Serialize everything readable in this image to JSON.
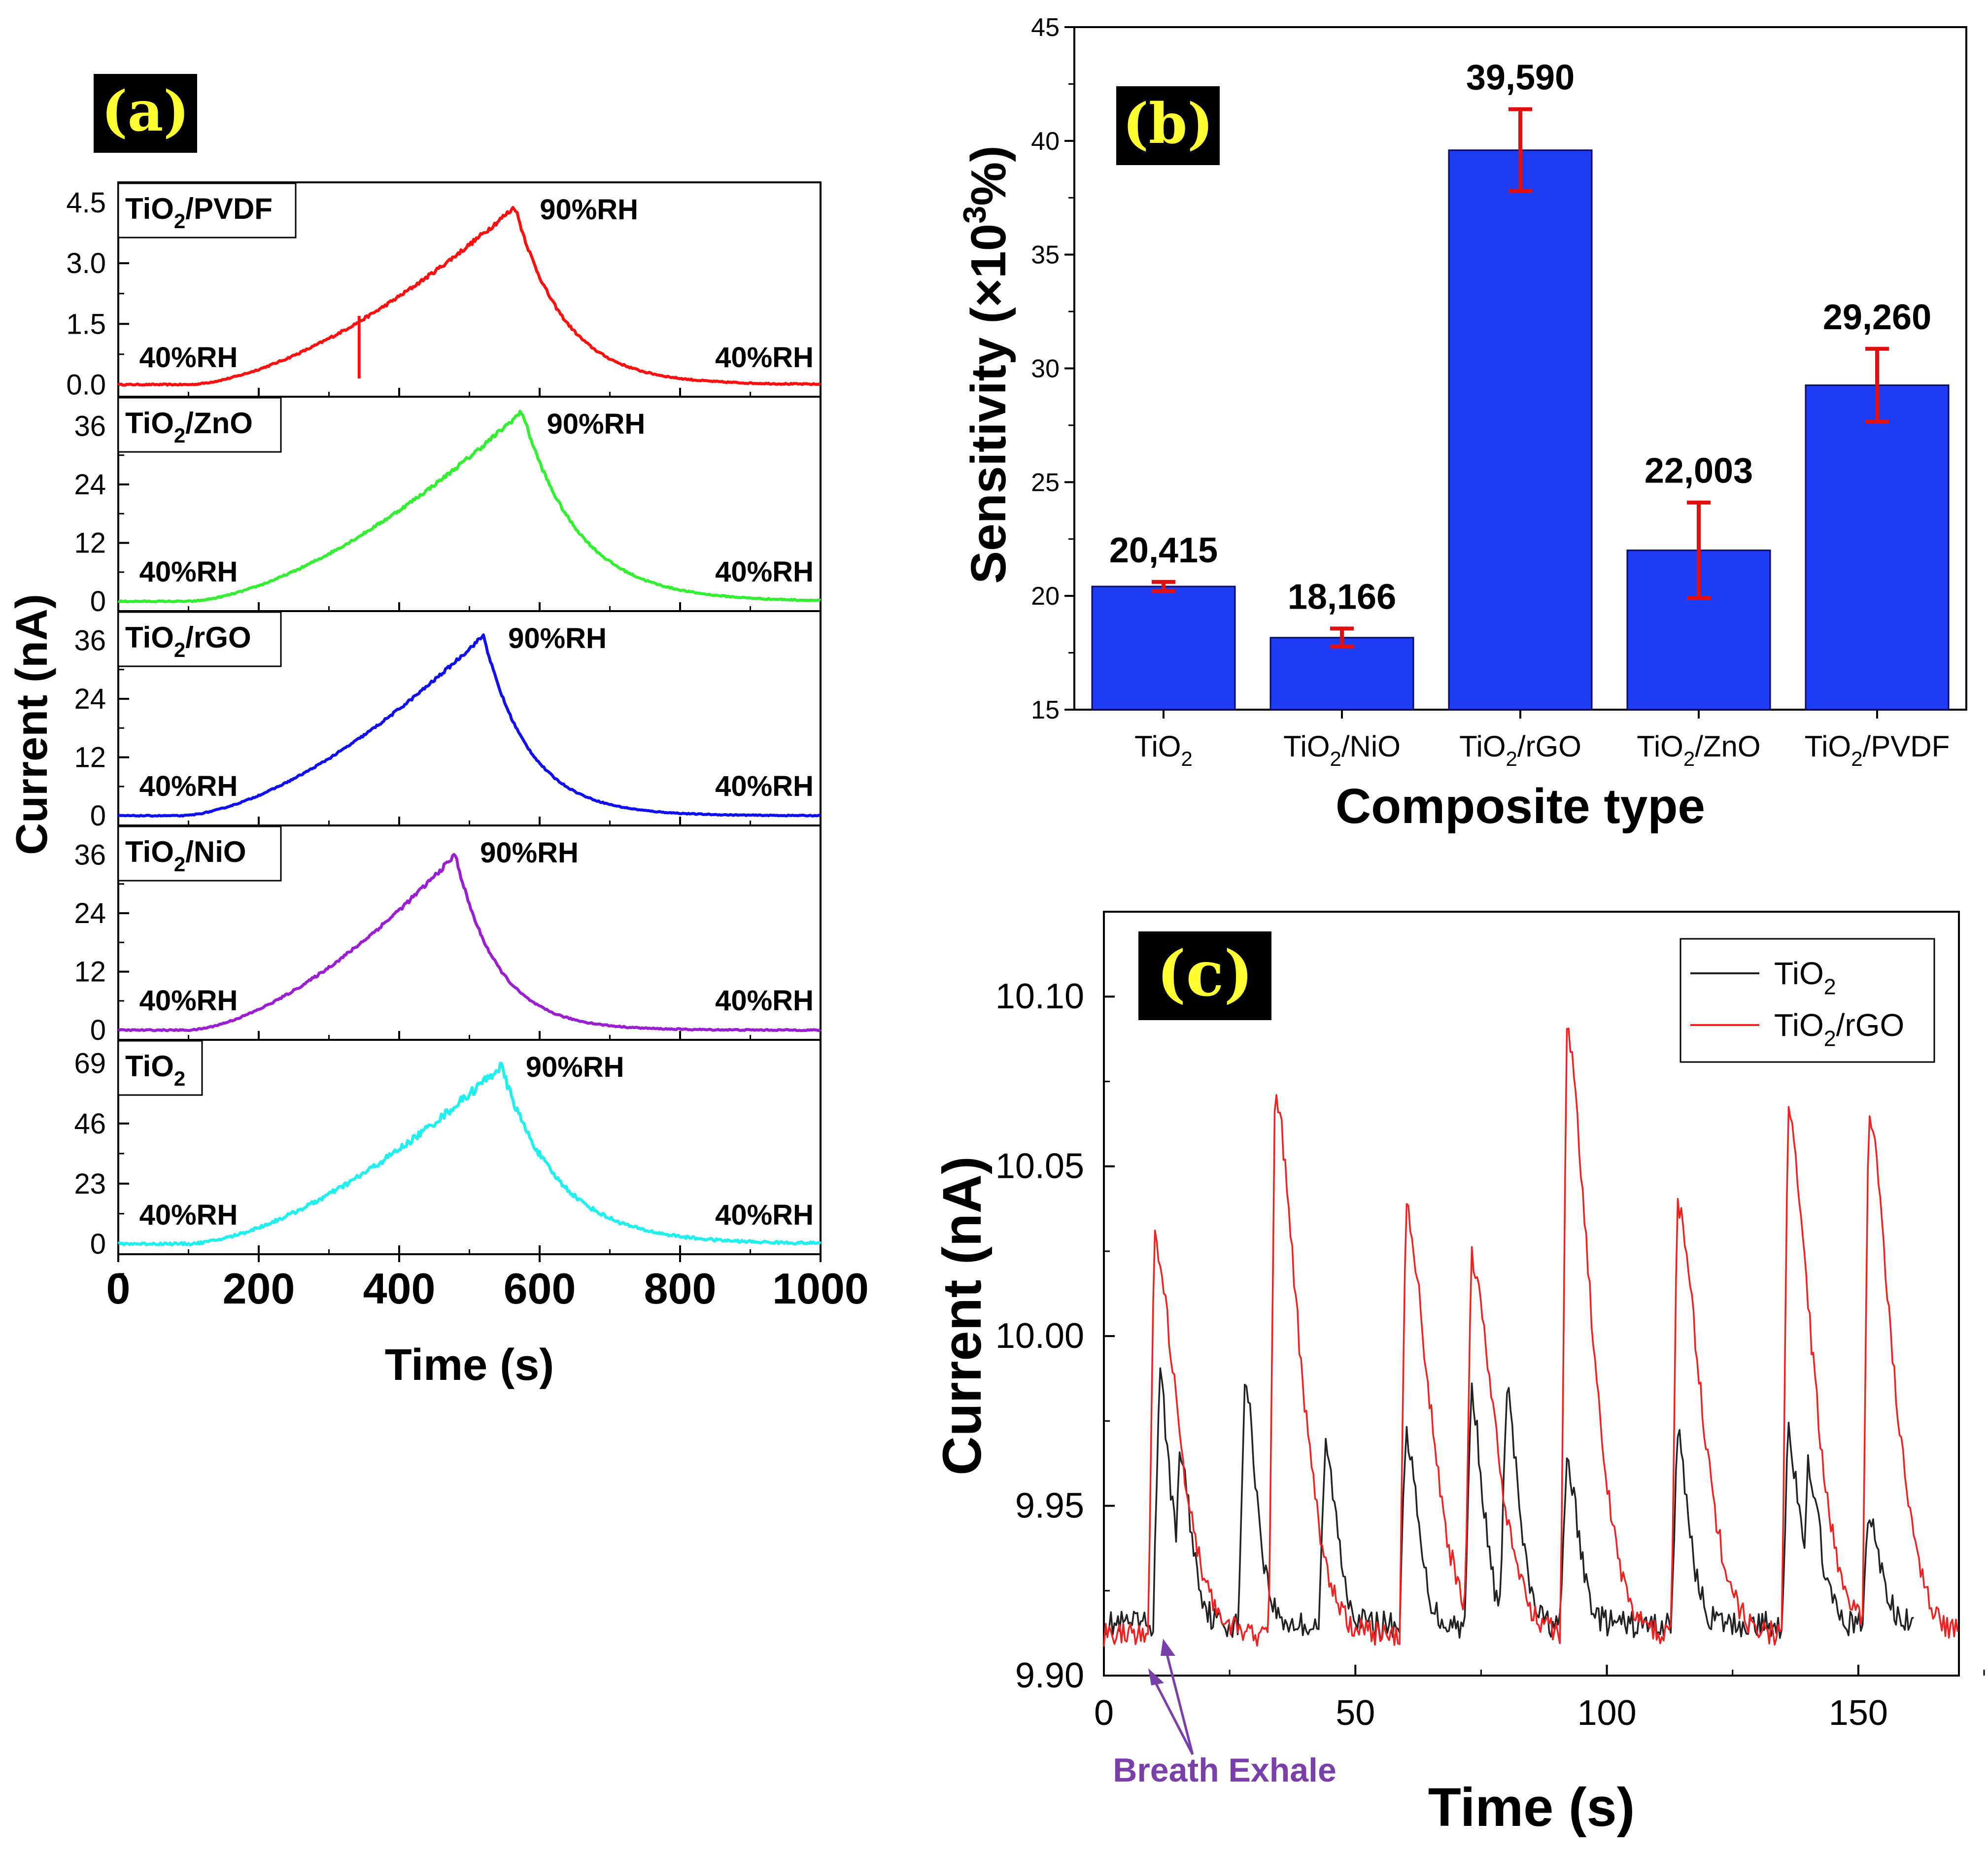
{
  "colors": {
    "bar": "#1f3cf5",
    "bar_edge": "#0a0a60",
    "error": "#e01010",
    "panel_label_bg": "#000000",
    "panel_label_fg": "#ffff33",
    "annotation": "#7a3fa8",
    "tio2_c": "#222222",
    "rgo_c": "#ee2222"
  },
  "chart_data": [
    {
      "id": "a",
      "type": "line",
      "panel_label": "(a)",
      "xlabel": "Time (s)",
      "ylabel": "Current (nA)",
      "xlim": [
        0,
        1000
      ],
      "xticks": [
        "0",
        "200",
        "400",
        "600",
        "800",
        "1000"
      ],
      "rh_low": "40%RH",
      "rh_high": "90%RH",
      "series": [
        {
          "name": "TiO2/PVDF",
          "base": "TiO",
          "sub": "2",
          "suffix": "/PVDF",
          "color": "#ff1010",
          "peak_x": 565,
          "peak_y": 4.4,
          "rise_start": 100,
          "tau": 70,
          "noise": 0.05,
          "ylim": [
            -0.3,
            5.0
          ],
          "yticks": [
            0,
            1.5,
            3.0,
            4.5
          ],
          "ytick_labels": [
            "0.0",
            "1.5",
            "3.0",
            "4.5"
          ]
        },
        {
          "name": "TiO2/ZnO",
          "base": "TiO",
          "sub": "2",
          "suffix": "/ZnO",
          "color": "#33ee33",
          "peak_x": 575,
          "peak_y": 39,
          "rise_start": 100,
          "tau": 80,
          "noise": 0.4,
          "ylim": [
            -2,
            42
          ],
          "yticks": [
            0,
            12,
            24,
            36
          ],
          "ytick_labels": [
            "0",
            "12",
            "24",
            "36"
          ]
        },
        {
          "name": "TiO2/rGO",
          "base": "TiO",
          "sub": "2",
          "suffix": "/rGO",
          "color": "#1010ee",
          "peak_x": 520,
          "peak_y": 37,
          "rise_start": 90,
          "tau": 65,
          "noise": 0.3,
          "ylim": [
            -2,
            42
          ],
          "yticks": [
            0,
            12,
            24,
            36
          ],
          "ytick_labels": [
            "0",
            "12",
            "24",
            "36"
          ]
        },
        {
          "name": "TiO2/NiO",
          "base": "TiO",
          "sub": "2",
          "suffix": "/NiO",
          "color": "#9a1fd0",
          "peak_x": 480,
          "peak_y": 36,
          "rise_start": 100,
          "tau": 60,
          "noise": 0.4,
          "ylim": [
            -2,
            42
          ],
          "yticks": [
            0,
            12,
            24,
            36
          ],
          "ytick_labels": [
            "0",
            "12",
            "24",
            "36"
          ]
        },
        {
          "name": "TiO2",
          "base": "TiO",
          "sub": "2",
          "suffix": "",
          "color": "#22eeee",
          "peak_x": 545,
          "peak_y": 68,
          "rise_start": 100,
          "tau": 80,
          "noise": 1.5,
          "ylim": [
            -4,
            78
          ],
          "yticks": [
            0,
            23,
            46,
            69
          ],
          "ytick_labels": [
            "0",
            "23",
            "46",
            "69"
          ]
        }
      ]
    },
    {
      "id": "b",
      "type": "bar",
      "panel_label": "(b)",
      "xlabel": "Composite type",
      "ylabel": "Sensitivity (×10³%)",
      "ylim": [
        15,
        45
      ],
      "yticks": [
        "15",
        "20",
        "25",
        "30",
        "35",
        "40",
        "45"
      ],
      "categories": [
        {
          "base": "TiO",
          "sub": "2",
          "suffix": ""
        },
        {
          "base": "TiO",
          "sub": "2",
          "suffix": "/NiO"
        },
        {
          "base": "TiO",
          "sub": "2",
          "suffix": "/rGO"
        },
        {
          "base": "TiO",
          "sub": "2",
          "suffix": "/ZnO"
        },
        {
          "base": "TiO",
          "sub": "2",
          "suffix": "/PVDF"
        }
      ],
      "values": [
        20.415,
        18.166,
        39.59,
        22.003,
        29.26
      ],
      "errors": [
        0.2,
        0.4,
        1.8,
        2.1,
        1.6
      ],
      "value_labels": [
        "20,415",
        "18,166",
        "39,590",
        "22,003",
        "29,260"
      ]
    },
    {
      "id": "c",
      "type": "line",
      "panel_label": "(c)",
      "xlabel": "Time (s)",
      "ylabel": "Current (nA)",
      "xlim": [
        0,
        170
      ],
      "ylim": [
        9.9,
        10.125
      ],
      "xticks": [
        "0",
        "50",
        "100",
        "150"
      ],
      "yticks": [
        "9.90",
        "9.95",
        "10.00",
        "10.05",
        "10.10"
      ],
      "annotation": "Breath Exhale",
      "series": [
        {
          "name": "TiO2",
          "base": "TiO",
          "sub": "2",
          "suffix": "",
          "color": "#222222",
          "baseline": 9.915,
          "end": 161,
          "noise": 0.004,
          "peaks": [
            [
              11,
              9.988
            ],
            [
              15,
              9.967
            ],
            [
              28,
              9.988
            ],
            [
              44,
              9.968
            ],
            [
              60,
              9.973
            ],
            [
              73,
              9.985
            ],
            [
              80,
              9.986
            ],
            [
              92,
              9.964
            ],
            [
              114,
              9.971
            ],
            [
              136,
              9.972
            ],
            [
              140,
              9.963
            ],
            [
              152,
              9.948
            ]
          ]
        },
        {
          "name": "TiO2/rGO",
          "base": "TiO",
          "sub": "2",
          "suffix": "/rGO",
          "color": "#ee2222",
          "baseline": 9.912,
          "end": 170,
          "noise": 0.0035,
          "peaks": [
            [
              10,
              10.029
            ],
            [
              34,
              10.073
            ],
            [
              60,
              10.039
            ],
            [
              73,
              10.024
            ],
            [
              92,
              10.091
            ],
            [
              114,
              10.04
            ],
            [
              136,
              10.068
            ],
            [
              152,
              10.066
            ]
          ]
        }
      ]
    }
  ]
}
